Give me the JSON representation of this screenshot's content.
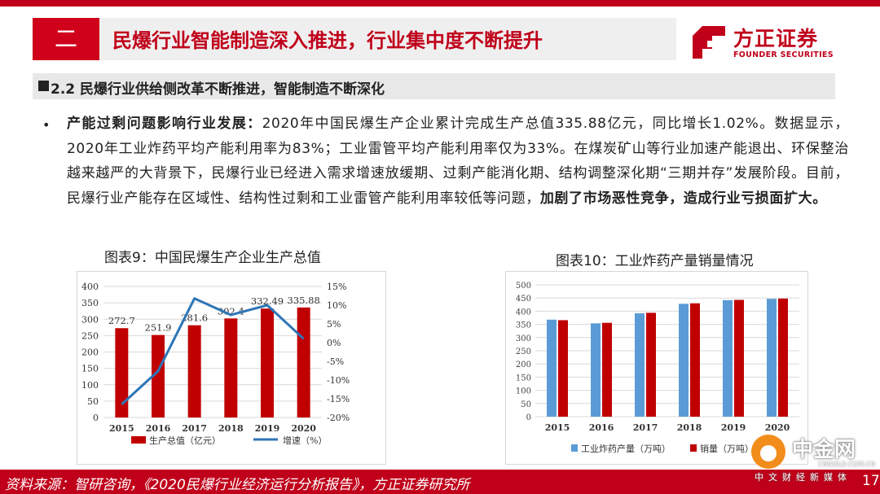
{
  "header": {
    "section_number": "二",
    "title": "民爆行业智能制造深入推进，行业集中度不断提升",
    "logo_cn": "方正证券",
    "logo_en": "FOUNDER SECURITIES",
    "brand_color": "#c0001a"
  },
  "subheading": "2.2 民爆行业供给侧改革不断推进，智能制造不断深化",
  "body": {
    "bullet": "•",
    "lead": "产能过剩问题影响行业发展：",
    "text1": "2020年中国民爆生产企业累计完成生产总值335.88亿元，同比增长1.02%。数据显示，2020年工业炸药平均产能利用率为83%；工业雷管平均产能利用率仅为33%。在煤炭矿山等行业加速产能退出、环保整治越来越严的大背景下，民爆行业已经进入需求增速放缓期、过剩产能消化期、结构调整深化期“三期并存”发展阶段。目前，民爆行业产能存在区域性、结构性过剩和工业雷管产能利用率较低等问题，",
    "emphasis": "加剧了市场恶性竞争，造成行业亏损面扩大。"
  },
  "chart_data": [
    {
      "type": "bar",
      "caption": "图表9：中国民爆生产企业生产总值",
      "categories": [
        "2015",
        "2016",
        "2017",
        "2018",
        "2019",
        "2020"
      ],
      "series": [
        {
          "name": "生产总值（亿元）",
          "type": "bar",
          "axis": "left",
          "color": "#c00000",
          "values": [
            272.7,
            251.9,
            281.6,
            302.4,
            332.49,
            335.88
          ],
          "labels": [
            "272.7",
            "251.9",
            "281.6",
            "302.4",
            "332.49",
            "335.88"
          ]
        },
        {
          "name": "增速（%）",
          "type": "line",
          "axis": "right",
          "color": "#2e75b6",
          "values": [
            -16.5,
            -7.6,
            11.8,
            7.4,
            10.0,
            1.02
          ]
        }
      ],
      "ylim": [
        0,
        400
      ],
      "yticks": [
        "0",
        "50",
        "100",
        "150",
        "200",
        "250",
        "300",
        "350",
        "400"
      ],
      "y2lim": [
        -20,
        15
      ],
      "y2ticks": [
        "-20%",
        "-15%",
        "-10%",
        "-5%",
        "0%",
        "5%",
        "10%",
        "15%"
      ],
      "grid": true,
      "legend": "bottom"
    },
    {
      "type": "bar",
      "caption": "图表10：工业炸药产量销量情况",
      "categories": [
        "2015",
        "2016",
        "2017",
        "2018",
        "2019",
        "2020"
      ],
      "series": [
        {
          "name": "工业炸药产量（万吨）",
          "color": "#5b9bd5",
          "values": [
            368,
            354,
            392,
            428,
            442,
            447
          ]
        },
        {
          "name": "销量（万吨）",
          "color": "#c00000",
          "values": [
            366,
            356,
            394,
            430,
            443,
            448
          ]
        }
      ],
      "ylim": [
        0,
        500
      ],
      "yticks": [
        "0",
        "50",
        "100",
        "150",
        "200",
        "250",
        "300",
        "350",
        "400",
        "450",
        "500"
      ],
      "grid": true,
      "legend": "bottom"
    }
  ],
  "footer": {
    "source": "资料来源：智研咨询，《2020民爆行业经济运行分析报告》，方正证券研究所",
    "page": "17"
  },
  "watermark": {
    "cn": "中金网",
    "url": "CNGOLD.COM.CN",
    "sub": "中文财经新媒体"
  }
}
